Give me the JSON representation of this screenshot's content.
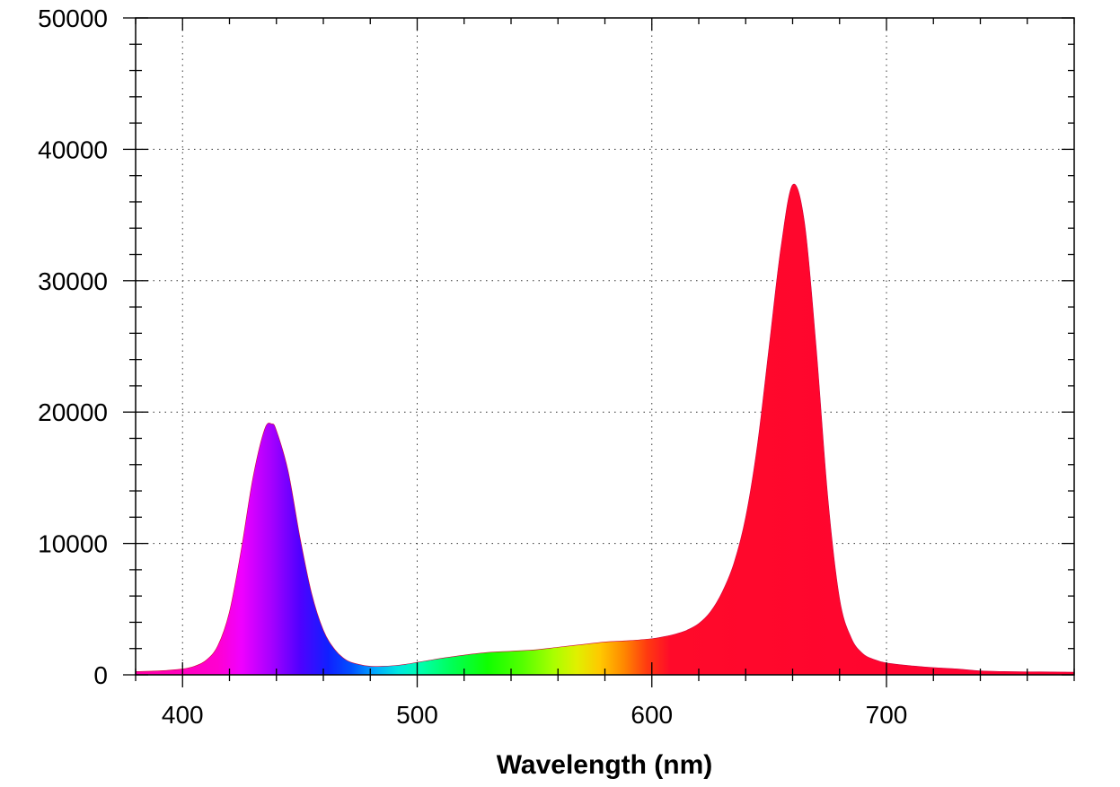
{
  "chart_data": {
    "type": "area",
    "title": "",
    "xlabel": "Wavelength (nm)",
    "ylabel": "",
    "xlim": [
      380,
      780
    ],
    "ylim": [
      0,
      50000
    ],
    "x_ticks": [
      400,
      500,
      600,
      700
    ],
    "x_tick_labels": [
      "400",
      "500",
      "600",
      "700"
    ],
    "y_ticks": [
      0,
      10000,
      20000,
      30000,
      40000,
      50000
    ],
    "y_tick_labels": [
      "0",
      "10000",
      "20000",
      "30000",
      "40000",
      "50000"
    ],
    "grid": true,
    "grid_style": "dotted",
    "fill": "spectral-gradient",
    "series": [
      {
        "x": [
          380,
          390,
          400,
          405,
          410,
          415,
          420,
          425,
          430,
          435,
          438,
          440,
          445,
          450,
          455,
          460,
          465,
          470,
          475,
          480,
          485,
          490,
          495,
          500,
          505,
          510,
          520,
          530,
          540,
          550,
          560,
          570,
          580,
          590,
          600,
          605,
          610,
          615,
          620,
          625,
          630,
          635,
          640,
          645,
          650,
          655,
          660,
          665,
          670,
          675,
          680,
          685,
          690,
          695,
          700,
          710,
          720,
          730,
          740,
          750,
          760,
          770,
          780
        ],
        "values": [
          250,
          300,
          450,
          650,
          1100,
          2200,
          4800,
          9500,
          15000,
          18700,
          19100,
          18600,
          15500,
          10500,
          6200,
          3400,
          1900,
          1100,
          800,
          650,
          650,
          700,
          800,
          950,
          1100,
          1250,
          1500,
          1700,
          1800,
          1900,
          2100,
          2300,
          2500,
          2600,
          2750,
          2900,
          3100,
          3400,
          3900,
          4800,
          6300,
          8500,
          12000,
          17500,
          25000,
          32500,
          37300,
          34500,
          25000,
          13500,
          5800,
          2800,
          1600,
          1150,
          900,
          700,
          550,
          450,
          300,
          250,
          230,
          220,
          200
        ]
      }
    ]
  }
}
